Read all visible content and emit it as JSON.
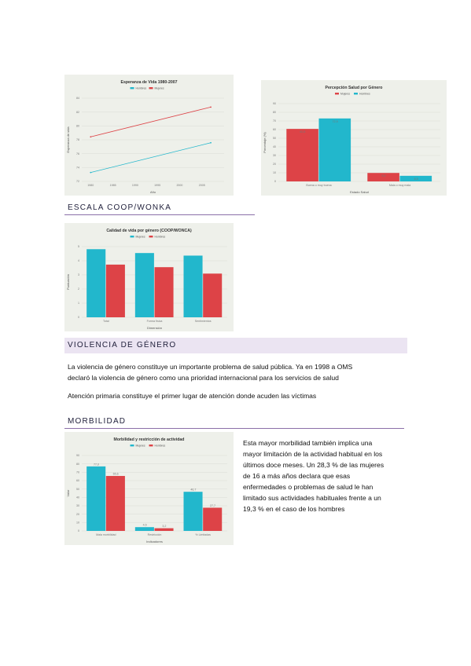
{
  "colors": {
    "cyan": "#22b7cc",
    "red": "#dd4347",
    "accent": "#8b6fa8",
    "band": "#ebe4f2"
  },
  "sections": {
    "escala": "ESCALA COOP/WONKA",
    "violencia": "VIOLENCIA DE GÉNERO",
    "morbilidad": "MORBILIDAD"
  },
  "violencia": {
    "p1_line1": "La violencia de género constituye un importante problema de salud pública. Ya en 1998 a OMS",
    "p1_line2": "declaró la violencia de género como una prioridad internacional para los servicios de salud",
    "p2": "Atención primaria constituye el primer lugar de atención donde acuden las víctimas"
  },
  "morbilidad_text": {
    "lines": [
      "Esta mayor morbilidad también implica una",
      "mayor limitación de la actividad habitual en los",
      "últimos doce meses. Un 28,3 % de las mujeres",
      "de 16 a más años declara que esas",
      "enfermedades o problemas de salud le han",
      "limitado sus actividades habituales frente a un",
      "19,3 % en el caso de los hombres"
    ]
  },
  "chart_data": [
    {
      "type": "line",
      "title": "Esperanza de Vida 1980-2007",
      "xlabel": "Año",
      "ylabel": "Esperanza de vida",
      "x": [
        1980,
        2007
      ],
      "xticks": [
        "1980",
        "1985",
        "1990",
        "1995",
        "2000",
        "2005"
      ],
      "yticks": [
        "84",
        "82",
        "80",
        "78",
        "76",
        "74",
        "72"
      ],
      "ylim": [
        71,
        85
      ],
      "series": [
        {
          "name": "Hombres",
          "color": "#22b7cc",
          "values": [
            72.5,
            77.5
          ]
        },
        {
          "name": "Mujeres",
          "color": "#dd4347",
          "values": [
            78.5,
            83.5
          ]
        }
      ],
      "legend": "top",
      "grid": true
    },
    {
      "type": "bar",
      "title": "Percepción Salud por Género",
      "xlabel": "Estado Salud",
      "ylabel": "Porcentaje (%)",
      "categories": [
        "Buena o muy buena",
        "Mala o muy mala"
      ],
      "yticks": [
        "90",
        "80",
        "70",
        "60",
        "50",
        "40",
        "30",
        "20",
        "10",
        "0"
      ],
      "ylim": [
        0,
        90
      ],
      "series": [
        {
          "name": "Mujeres",
          "color": "#dd4347",
          "values": [
            60.8,
            9.8
          ]
        },
        {
          "name": "Hombres",
          "color": "#22b7cc",
          "values": [
            72.9,
            6.5
          ]
        }
      ],
      "legend": "top",
      "grid": true
    },
    {
      "type": "bar",
      "title": "Calidad de vida por género (COOP/WONCA)",
      "xlabel": "Dimensión",
      "ylabel": "Puntuación",
      "categories": [
        "Total",
        "Forma física",
        "Sentimientos"
      ],
      "yticks": [
        "5",
        "4",
        "3",
        "2",
        "1",
        "0"
      ],
      "ylim": [
        0,
        5.5
      ],
      "series": [
        {
          "name": "Mujeres",
          "color": "#22b7cc",
          "values": [
            5.3,
            5.0,
            4.8
          ]
        },
        {
          "name": "Hombres",
          "color": "#dd4347",
          "values": [
            4.1,
            3.9,
            3.4
          ]
        }
      ],
      "legend": "top",
      "grid": true
    },
    {
      "type": "bar",
      "title": "Morbilidad y restricción de actividad",
      "xlabel": "Indicadores",
      "ylabel": "Valor",
      "categories": [
        "Mala morbilidad",
        "Restricción",
        "% Limitadas"
      ],
      "yticks": [
        "90",
        "80",
        "70",
        "60",
        "50",
        "40",
        "30",
        "20",
        "10",
        "0"
      ],
      "ylim": [
        0,
        90
      ],
      "series": [
        {
          "name": "Mujeres",
          "color": "#22b7cc",
          "values": [
            77.0,
            4.5,
            46.7
          ]
        },
        {
          "name": "Hombres",
          "color": "#dd4347",
          "values": [
            65.6,
            3.2,
            27.7
          ]
        }
      ],
      "value_labels": [
        [
          "77,0",
          "4,5",
          "46,7"
        ],
        [
          "65,6",
          "3,2",
          "27,7"
        ]
      ],
      "legend": "top",
      "grid": true
    }
  ]
}
